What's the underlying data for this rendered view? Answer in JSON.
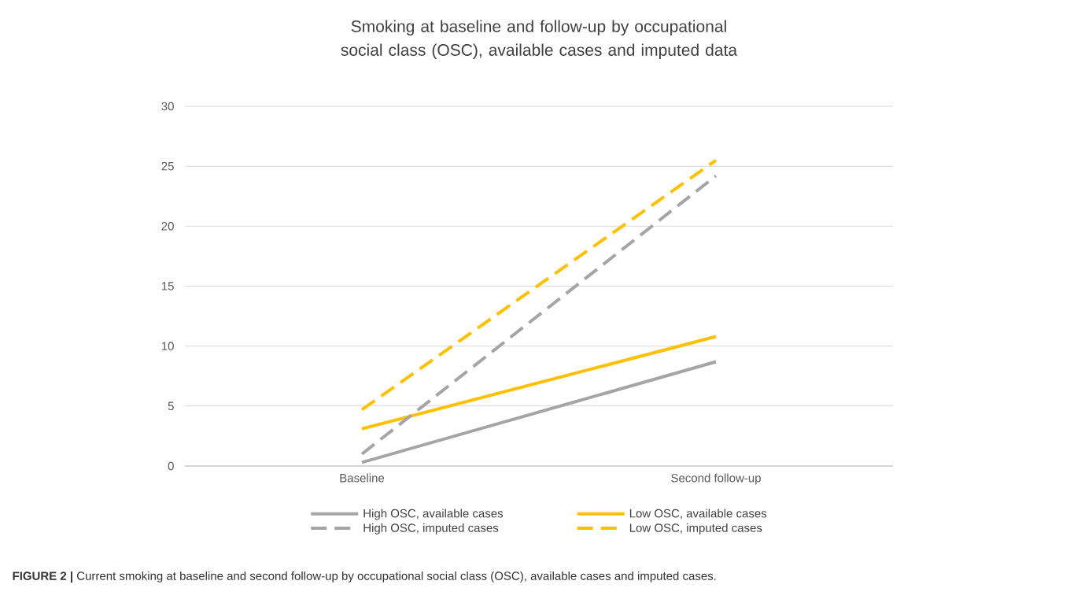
{
  "chart_data": {
    "type": "line",
    "title": "Smoking at baseline and follow-up by occupational social class (OSC), available cases and imputed data",
    "categories": [
      "Baseline",
      "Second follow-up"
    ],
    "series": [
      {
        "name": "High OSC, available cases",
        "color": "#a5a5a5",
        "line_style": "solid",
        "values": [
          0.3,
          8.7
        ]
      },
      {
        "name": "Low OSC, available cases",
        "color": "#ffc000",
        "line_style": "solid",
        "values": [
          3.1,
          10.8
        ]
      },
      {
        "name": "High OSC, imputed cases",
        "color": "#a5a5a5",
        "line_style": "dashed",
        "values": [
          1.0,
          24.2
        ]
      },
      {
        "name": "Low OSC, imputed cases",
        "color": "#ffc000",
        "line_style": "dashed",
        "values": [
          4.7,
          25.5
        ]
      }
    ],
    "ylim": [
      0,
      30
    ],
    "yticks": [
      0,
      5,
      10,
      15,
      20,
      25,
      30
    ],
    "grid": "y",
    "legend": "bottom",
    "annotations": [
      "**FIGURE 2 |** Current smoking at baseline and second follow-up by occupational social class (OSC), available cases and imputed cases."
    ]
  }
}
